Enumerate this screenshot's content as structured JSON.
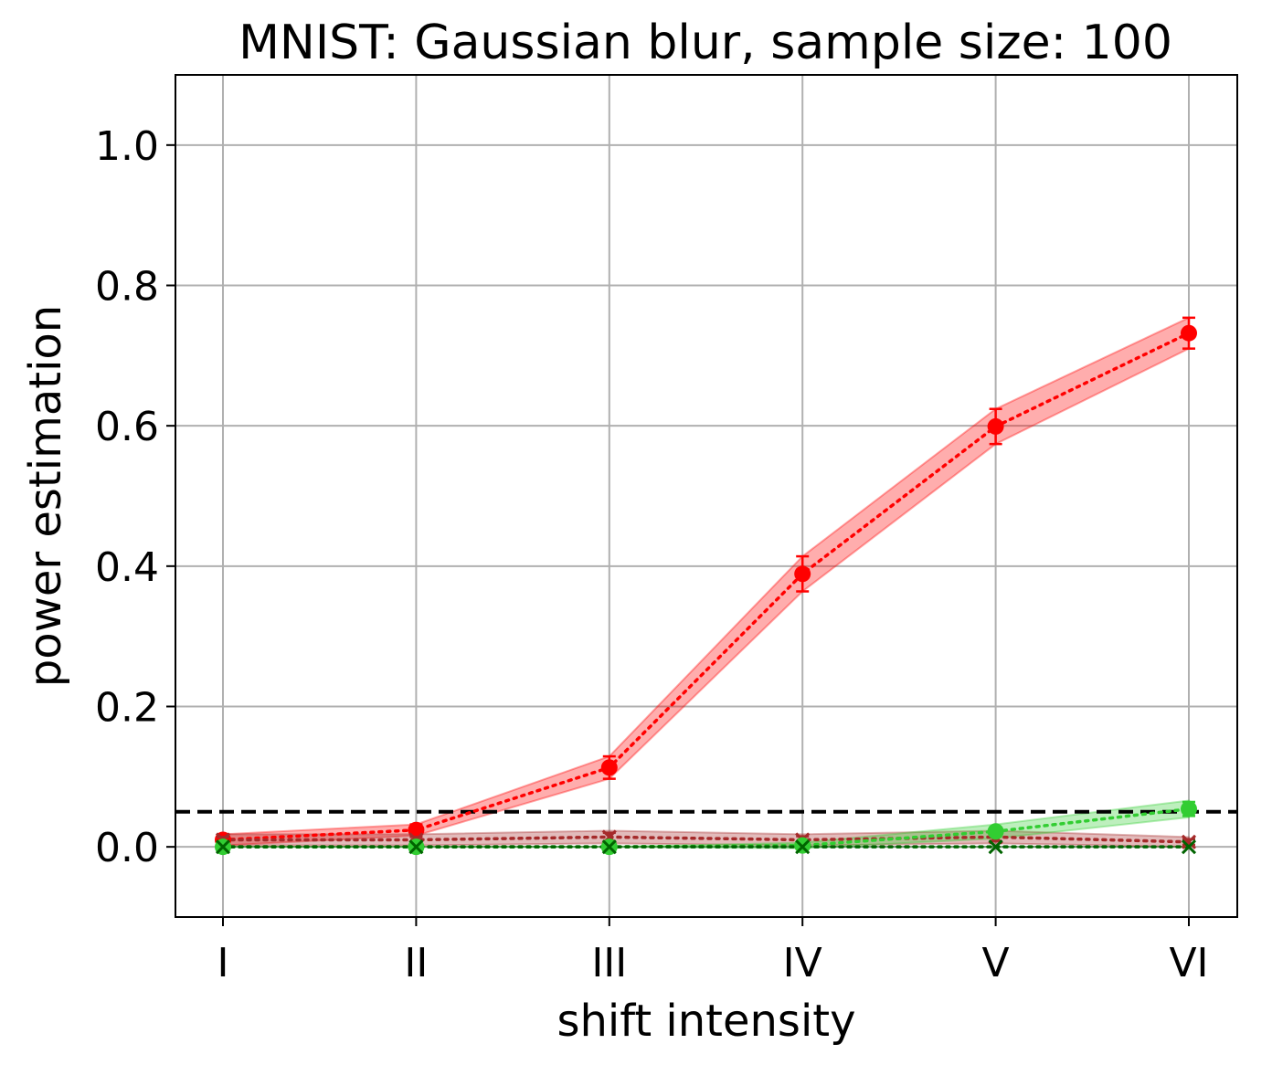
{
  "chart_data": {
    "type": "line",
    "title": "MNIST: Gaussian blur, sample size: 100",
    "xlabel": "shift intensity",
    "ylabel": "power estimation",
    "categories": [
      "I",
      "II",
      "III",
      "IV",
      "V",
      "VI"
    ],
    "ylim": [
      -0.1,
      1.1
    ],
    "yticks": [
      "0.0",
      "0.2",
      "0.4",
      "0.6",
      "0.8",
      "1.0"
    ],
    "grid": true,
    "reference_line": {
      "y": 0.05,
      "style": "dashed",
      "color": "#000000"
    },
    "series": [
      {
        "values": [
          0.01,
          0.024,
          0.113,
          0.389,
          0.599,
          0.732
        ],
        "errors": [
          0.005,
          0.008,
          0.016,
          0.025,
          0.025,
          0.022
        ],
        "band": [
          0.008,
          0.008,
          0.016,
          0.025,
          0.025,
          0.022
        ],
        "marker": "circle",
        "color": "#ff0000",
        "linestyle": "dotted"
      },
      {
        "values": [
          0.01,
          0.01,
          0.014,
          0.01,
          0.014,
          0.007
        ],
        "errors": [
          0.004,
          0.004,
          0.006,
          0.005,
          0.006,
          0.004
        ],
        "band": [
          0.008,
          0.008,
          0.009,
          0.008,
          0.009,
          0.007
        ],
        "marker": "x",
        "color": "#a52a2a",
        "linestyle": "dotted"
      },
      {
        "values": [
          0.0,
          0.0,
          0.0,
          0.002,
          0.022,
          0.054
        ],
        "errors": [
          0.0,
          0.0,
          0.0,
          0.002,
          0.005,
          0.01
        ],
        "band": [
          0.0,
          0.0,
          0.0,
          0.004,
          0.01,
          0.012
        ],
        "marker": "circle",
        "color": "#32cd32",
        "linestyle": "dotted"
      },
      {
        "values": [
          0.0,
          0.0,
          0.0,
          0.0,
          0.0,
          0.0
        ],
        "errors": [
          0.0,
          0.0,
          0.0,
          0.0,
          0.0,
          0.0
        ],
        "band": [
          0.0,
          0.0,
          0.0,
          0.0,
          0.0,
          0.0
        ],
        "marker": "x",
        "color": "#006400",
        "linestyle": "dotted"
      }
    ]
  }
}
